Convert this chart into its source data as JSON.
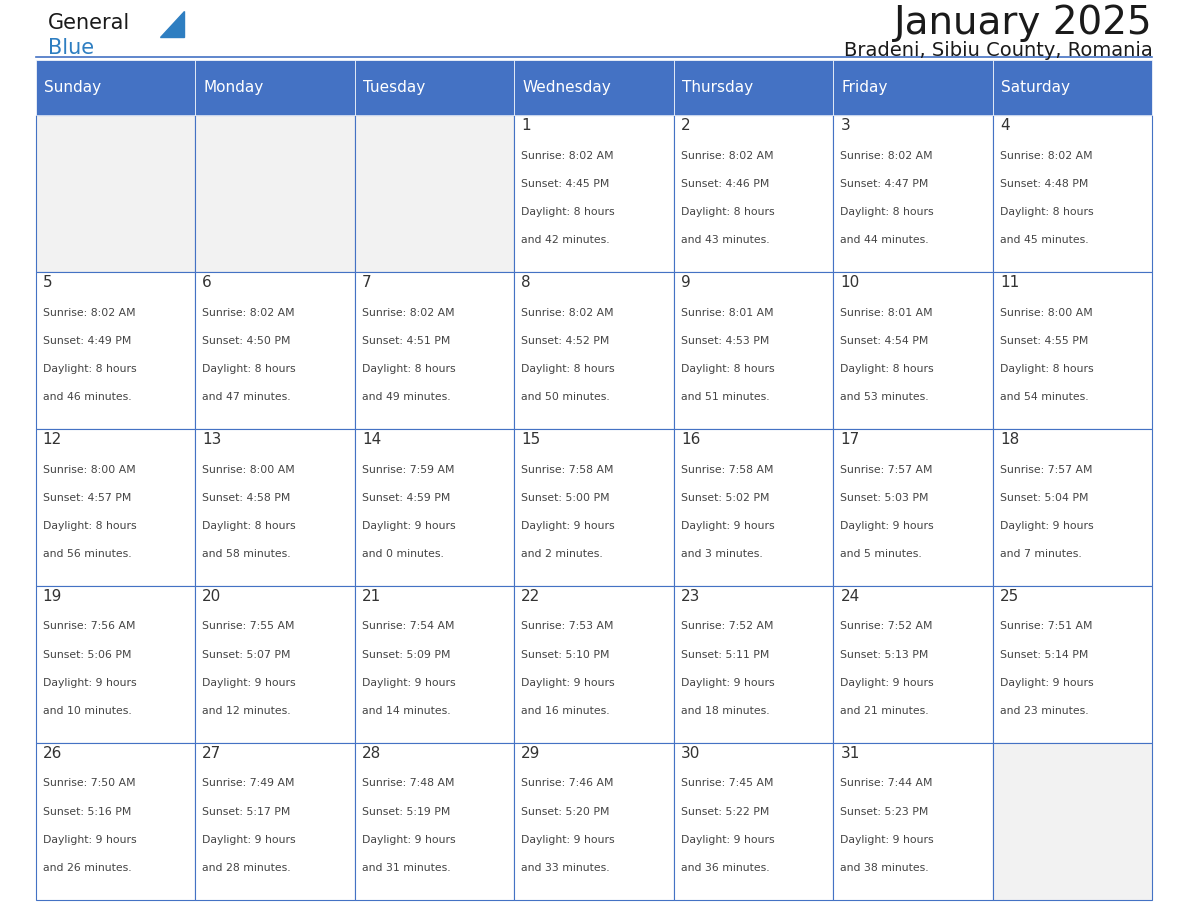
{
  "title": "January 2025",
  "subtitle": "Bradeni, Sibiu County, Romania",
  "days_of_week": [
    "Sunday",
    "Monday",
    "Tuesday",
    "Wednesday",
    "Thursday",
    "Friday",
    "Saturday"
  ],
  "header_bg": "#4472C4",
  "header_text": "#FFFFFF",
  "cell_bg_light": "#F2F2F2",
  "cell_bg_white": "#FFFFFF",
  "border_color": "#4472C4",
  "day_number_color": "#333333",
  "cell_text_color": "#444444",
  "title_color": "#1a1a1a",
  "subtitle_color": "#1a1a1a",
  "logo_general_color": "#1a1a1a",
  "logo_blue_color": "#2e7ec1",
  "calendar_data": [
    [
      {
        "day": null,
        "sunrise": null,
        "sunset": null,
        "daylight1": null,
        "daylight2": null
      },
      {
        "day": null,
        "sunrise": null,
        "sunset": null,
        "daylight1": null,
        "daylight2": null
      },
      {
        "day": null,
        "sunrise": null,
        "sunset": null,
        "daylight1": null,
        "daylight2": null
      },
      {
        "day": 1,
        "sunrise": "8:02 AM",
        "sunset": "4:45 PM",
        "daylight1": "8 hours",
        "daylight2": "and 42 minutes."
      },
      {
        "day": 2,
        "sunrise": "8:02 AM",
        "sunset": "4:46 PM",
        "daylight1": "8 hours",
        "daylight2": "and 43 minutes."
      },
      {
        "day": 3,
        "sunrise": "8:02 AM",
        "sunset": "4:47 PM",
        "daylight1": "8 hours",
        "daylight2": "and 44 minutes."
      },
      {
        "day": 4,
        "sunrise": "8:02 AM",
        "sunset": "4:48 PM",
        "daylight1": "8 hours",
        "daylight2": "and 45 minutes."
      }
    ],
    [
      {
        "day": 5,
        "sunrise": "8:02 AM",
        "sunset": "4:49 PM",
        "daylight1": "8 hours",
        "daylight2": "and 46 minutes."
      },
      {
        "day": 6,
        "sunrise": "8:02 AM",
        "sunset": "4:50 PM",
        "daylight1": "8 hours",
        "daylight2": "and 47 minutes."
      },
      {
        "day": 7,
        "sunrise": "8:02 AM",
        "sunset": "4:51 PM",
        "daylight1": "8 hours",
        "daylight2": "and 49 minutes."
      },
      {
        "day": 8,
        "sunrise": "8:02 AM",
        "sunset": "4:52 PM",
        "daylight1": "8 hours",
        "daylight2": "and 50 minutes."
      },
      {
        "day": 9,
        "sunrise": "8:01 AM",
        "sunset": "4:53 PM",
        "daylight1": "8 hours",
        "daylight2": "and 51 minutes."
      },
      {
        "day": 10,
        "sunrise": "8:01 AM",
        "sunset": "4:54 PM",
        "daylight1": "8 hours",
        "daylight2": "and 53 minutes."
      },
      {
        "day": 11,
        "sunrise": "8:00 AM",
        "sunset": "4:55 PM",
        "daylight1": "8 hours",
        "daylight2": "and 54 minutes."
      }
    ],
    [
      {
        "day": 12,
        "sunrise": "8:00 AM",
        "sunset": "4:57 PM",
        "daylight1": "8 hours",
        "daylight2": "and 56 minutes."
      },
      {
        "day": 13,
        "sunrise": "8:00 AM",
        "sunset": "4:58 PM",
        "daylight1": "8 hours",
        "daylight2": "and 58 minutes."
      },
      {
        "day": 14,
        "sunrise": "7:59 AM",
        "sunset": "4:59 PM",
        "daylight1": "9 hours",
        "daylight2": "and 0 minutes."
      },
      {
        "day": 15,
        "sunrise": "7:58 AM",
        "sunset": "5:00 PM",
        "daylight1": "9 hours",
        "daylight2": "and 2 minutes."
      },
      {
        "day": 16,
        "sunrise": "7:58 AM",
        "sunset": "5:02 PM",
        "daylight1": "9 hours",
        "daylight2": "and 3 minutes."
      },
      {
        "day": 17,
        "sunrise": "7:57 AM",
        "sunset": "5:03 PM",
        "daylight1": "9 hours",
        "daylight2": "and 5 minutes."
      },
      {
        "day": 18,
        "sunrise": "7:57 AM",
        "sunset": "5:04 PM",
        "daylight1": "9 hours",
        "daylight2": "and 7 minutes."
      }
    ],
    [
      {
        "day": 19,
        "sunrise": "7:56 AM",
        "sunset": "5:06 PM",
        "daylight1": "9 hours",
        "daylight2": "and 10 minutes."
      },
      {
        "day": 20,
        "sunrise": "7:55 AM",
        "sunset": "5:07 PM",
        "daylight1": "9 hours",
        "daylight2": "and 12 minutes."
      },
      {
        "day": 21,
        "sunrise": "7:54 AM",
        "sunset": "5:09 PM",
        "daylight1": "9 hours",
        "daylight2": "and 14 minutes."
      },
      {
        "day": 22,
        "sunrise": "7:53 AM",
        "sunset": "5:10 PM",
        "daylight1": "9 hours",
        "daylight2": "and 16 minutes."
      },
      {
        "day": 23,
        "sunrise": "7:52 AM",
        "sunset": "5:11 PM",
        "daylight1": "9 hours",
        "daylight2": "and 18 minutes."
      },
      {
        "day": 24,
        "sunrise": "7:52 AM",
        "sunset": "5:13 PM",
        "daylight1": "9 hours",
        "daylight2": "and 21 minutes."
      },
      {
        "day": 25,
        "sunrise": "7:51 AM",
        "sunset": "5:14 PM",
        "daylight1": "9 hours",
        "daylight2": "and 23 minutes."
      }
    ],
    [
      {
        "day": 26,
        "sunrise": "7:50 AM",
        "sunset": "5:16 PM",
        "daylight1": "9 hours",
        "daylight2": "and 26 minutes."
      },
      {
        "day": 27,
        "sunrise": "7:49 AM",
        "sunset": "5:17 PM",
        "daylight1": "9 hours",
        "daylight2": "and 28 minutes."
      },
      {
        "day": 28,
        "sunrise": "7:48 AM",
        "sunset": "5:19 PM",
        "daylight1": "9 hours",
        "daylight2": "and 31 minutes."
      },
      {
        "day": 29,
        "sunrise": "7:46 AM",
        "sunset": "5:20 PM",
        "daylight1": "9 hours",
        "daylight2": "and 33 minutes."
      },
      {
        "day": 30,
        "sunrise": "7:45 AM",
        "sunset": "5:22 PM",
        "daylight1": "9 hours",
        "daylight2": "and 36 minutes."
      },
      {
        "day": 31,
        "sunrise": "7:44 AM",
        "sunset": "5:23 PM",
        "daylight1": "9 hours",
        "daylight2": "and 38 minutes."
      },
      {
        "day": null,
        "sunrise": null,
        "sunset": null,
        "daylight1": null,
        "daylight2": null
      }
    ]
  ]
}
